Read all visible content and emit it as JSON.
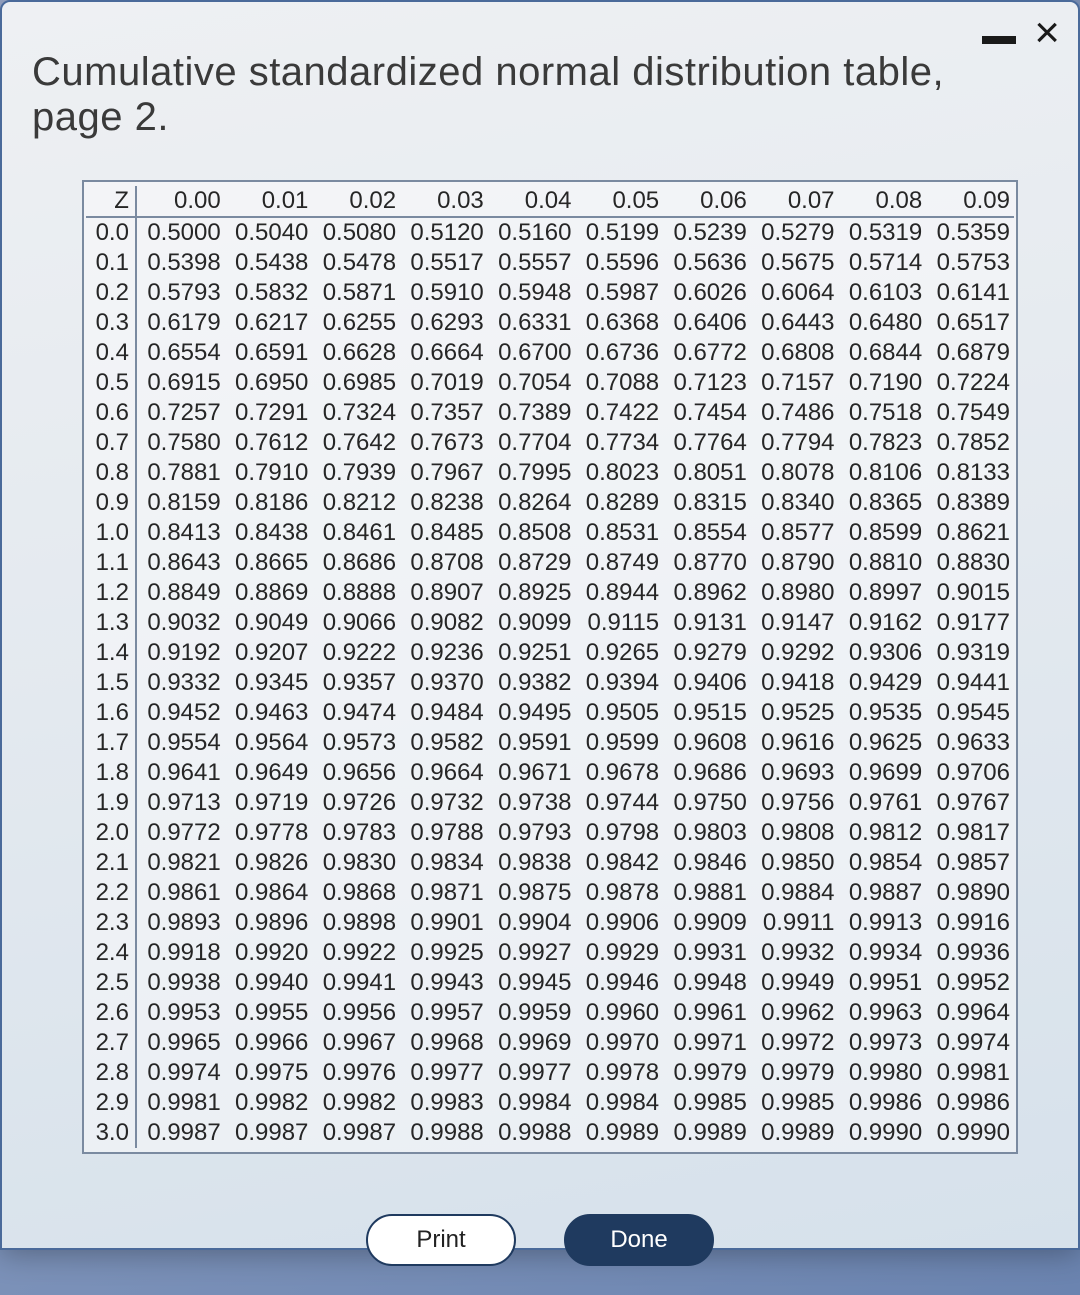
{
  "dialog": {
    "title": "Cumulative standardized normal distribution table, page 2.",
    "buttons": {
      "print_label": "Print",
      "done_label": "Done"
    }
  },
  "table": {
    "type": "table",
    "corner_label": "Z",
    "columns": [
      "0.00",
      "0.01",
      "0.02",
      "0.03",
      "0.04",
      "0.05",
      "0.06",
      "0.07",
      "0.08",
      "0.09"
    ],
    "row_headers": [
      "0.0",
      "0.1",
      "0.2",
      "0.3",
      "0.4",
      "0.5",
      "0.6",
      "0.7",
      "0.8",
      "0.9",
      "1.0",
      "1.1",
      "1.2",
      "1.3",
      "1.4",
      "1.5",
      "1.6",
      "1.7",
      "1.8",
      "1.9",
      "2.0",
      "2.1",
      "2.2",
      "2.3",
      "2.4",
      "2.5",
      "2.6",
      "2.7",
      "2.8",
      "2.9",
      "3.0"
    ],
    "rows": [
      [
        "0.5000",
        "0.5040",
        "0.5080",
        "0.5120",
        "0.5160",
        "0.5199",
        "0.5239",
        "0.5279",
        "0.5319",
        "0.5359"
      ],
      [
        "0.5398",
        "0.5438",
        "0.5478",
        "0.5517",
        "0.5557",
        "0.5596",
        "0.5636",
        "0.5675",
        "0.5714",
        "0.5753"
      ],
      [
        "0.5793",
        "0.5832",
        "0.5871",
        "0.5910",
        "0.5948",
        "0.5987",
        "0.6026",
        "0.6064",
        "0.6103",
        "0.6141"
      ],
      [
        "0.6179",
        "0.6217",
        "0.6255",
        "0.6293",
        "0.6331",
        "0.6368",
        "0.6406",
        "0.6443",
        "0.6480",
        "0.6517"
      ],
      [
        "0.6554",
        "0.6591",
        "0.6628",
        "0.6664",
        "0.6700",
        "0.6736",
        "0.6772",
        "0.6808",
        "0.6844",
        "0.6879"
      ],
      [
        "0.6915",
        "0.6950",
        "0.6985",
        "0.7019",
        "0.7054",
        "0.7088",
        "0.7123",
        "0.7157",
        "0.7190",
        "0.7224"
      ],
      [
        "0.7257",
        "0.7291",
        "0.7324",
        "0.7357",
        "0.7389",
        "0.7422",
        "0.7454",
        "0.7486",
        "0.7518",
        "0.7549"
      ],
      [
        "0.7580",
        "0.7612",
        "0.7642",
        "0.7673",
        "0.7704",
        "0.7734",
        "0.7764",
        "0.7794",
        "0.7823",
        "0.7852"
      ],
      [
        "0.7881",
        "0.7910",
        "0.7939",
        "0.7967",
        "0.7995",
        "0.8023",
        "0.8051",
        "0.8078",
        "0.8106",
        "0.8133"
      ],
      [
        "0.8159",
        "0.8186",
        "0.8212",
        "0.8238",
        "0.8264",
        "0.8289",
        "0.8315",
        "0.8340",
        "0.8365",
        "0.8389"
      ],
      [
        "0.8413",
        "0.8438",
        "0.8461",
        "0.8485",
        "0.8508",
        "0.8531",
        "0.8554",
        "0.8577",
        "0.8599",
        "0.8621"
      ],
      [
        "0.8643",
        "0.8665",
        "0.8686",
        "0.8708",
        "0.8729",
        "0.8749",
        "0.8770",
        "0.8790",
        "0.8810",
        "0.8830"
      ],
      [
        "0.8849",
        "0.8869",
        "0.8888",
        "0.8907",
        "0.8925",
        "0.8944",
        "0.8962",
        "0.8980",
        "0.8997",
        "0.9015"
      ],
      [
        "0.9032",
        "0.9049",
        "0.9066",
        "0.9082",
        "0.9099",
        "0.9115",
        "0.9131",
        "0.9147",
        "0.9162",
        "0.9177"
      ],
      [
        "0.9192",
        "0.9207",
        "0.9222",
        "0.9236",
        "0.9251",
        "0.9265",
        "0.9279",
        "0.9292",
        "0.9306",
        "0.9319"
      ],
      [
        "0.9332",
        "0.9345",
        "0.9357",
        "0.9370",
        "0.9382",
        "0.9394",
        "0.9406",
        "0.9418",
        "0.9429",
        "0.9441"
      ],
      [
        "0.9452",
        "0.9463",
        "0.9474",
        "0.9484",
        "0.9495",
        "0.9505",
        "0.9515",
        "0.9525",
        "0.9535",
        "0.9545"
      ],
      [
        "0.9554",
        "0.9564",
        "0.9573",
        "0.9582",
        "0.9591",
        "0.9599",
        "0.9608",
        "0.9616",
        "0.9625",
        "0.9633"
      ],
      [
        "0.9641",
        "0.9649",
        "0.9656",
        "0.9664",
        "0.9671",
        "0.9678",
        "0.9686",
        "0.9693",
        "0.9699",
        "0.9706"
      ],
      [
        "0.9713",
        "0.9719",
        "0.9726",
        "0.9732",
        "0.9738",
        "0.9744",
        "0.9750",
        "0.9756",
        "0.9761",
        "0.9767"
      ],
      [
        "0.9772",
        "0.9778",
        "0.9783",
        "0.9788",
        "0.9793",
        "0.9798",
        "0.9803",
        "0.9808",
        "0.9812",
        "0.9817"
      ],
      [
        "0.9821",
        "0.9826",
        "0.9830",
        "0.9834",
        "0.9838",
        "0.9842",
        "0.9846",
        "0.9850",
        "0.9854",
        "0.9857"
      ],
      [
        "0.9861",
        "0.9864",
        "0.9868",
        "0.9871",
        "0.9875",
        "0.9878",
        "0.9881",
        "0.9884",
        "0.9887",
        "0.9890"
      ],
      [
        "0.9893",
        "0.9896",
        "0.9898",
        "0.9901",
        "0.9904",
        "0.9906",
        "0.9909",
        "0.9911",
        "0.9913",
        "0.9916"
      ],
      [
        "0.9918",
        "0.9920",
        "0.9922",
        "0.9925",
        "0.9927",
        "0.9929",
        "0.9931",
        "0.9932",
        "0.9934",
        "0.9936"
      ],
      [
        "0.9938",
        "0.9940",
        "0.9941",
        "0.9943",
        "0.9945",
        "0.9946",
        "0.9948",
        "0.9949",
        "0.9951",
        "0.9952"
      ],
      [
        "0.9953",
        "0.9955",
        "0.9956",
        "0.9957",
        "0.9959",
        "0.9960",
        "0.9961",
        "0.9962",
        "0.9963",
        "0.9964"
      ],
      [
        "0.9965",
        "0.9966",
        "0.9967",
        "0.9968",
        "0.9969",
        "0.9970",
        "0.9971",
        "0.9972",
        "0.9973",
        "0.9974"
      ],
      [
        "0.9974",
        "0.9975",
        "0.9976",
        "0.9977",
        "0.9977",
        "0.9978",
        "0.9979",
        "0.9979",
        "0.9980",
        "0.9981"
      ],
      [
        "0.9981",
        "0.9982",
        "0.9982",
        "0.9983",
        "0.9984",
        "0.9984",
        "0.9985",
        "0.9985",
        "0.9986",
        "0.9986"
      ],
      [
        "0.9987",
        "0.9987",
        "0.9987",
        "0.9988",
        "0.9988",
        "0.9989",
        "0.9989",
        "0.9989",
        "0.9990",
        "0.9990"
      ]
    ],
    "styling": {
      "font_size_pt": 18,
      "text_color": "#262626",
      "border_color": "#7a8aa0",
      "background_color": "rgba(250,250,252,0.55)",
      "col_align": "right"
    }
  },
  "colors": {
    "dialog_bg_top": "#eef0f3",
    "dialog_bg_bottom": "#d6e1eb",
    "dialog_border": "#4a6a9a",
    "body_bg": "#8095bb",
    "btn_primary_bg": "#1f3a5f",
    "btn_primary_text": "#ffffff",
    "btn_secondary_bg": "#ffffff",
    "btn_secondary_text": "#222222"
  }
}
